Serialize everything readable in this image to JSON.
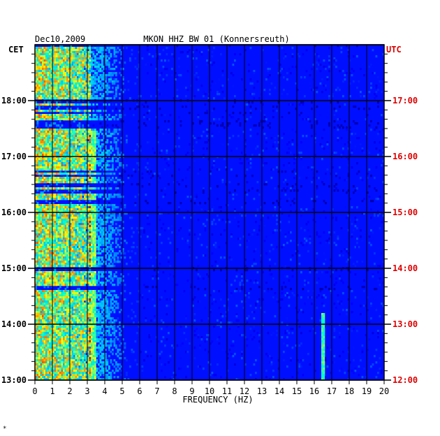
{
  "chart_data": {
    "type": "heatmap",
    "date": "Dec10,2009",
    "title": "MKON HHZ BW 01 (Konnersreuth)",
    "xlabel": "FREQUENCY (HZ)",
    "xlim": [
      0,
      20
    ],
    "x_ticks": [
      "0",
      "1",
      "2",
      "3",
      "4",
      "5",
      "6",
      "7",
      "8",
      "9",
      "10",
      "11",
      "12",
      "13",
      "14",
      "15",
      "16",
      "17",
      "18",
      "19",
      "20"
    ],
    "left_axis": {
      "zone": "CET",
      "range_hours": [
        13,
        19
      ],
      "ticks": [
        "13:00",
        "14:00",
        "15:00",
        "16:00",
        "17:00",
        "18:00"
      ]
    },
    "right_axis": {
      "zone": "UTC",
      "range_hours": [
        12,
        18
      ],
      "ticks": [
        "12:00",
        "13:00",
        "14:00",
        "15:00",
        "16:00",
        "17:00"
      ]
    },
    "grid": true,
    "colors": {
      "background": "#0033bb",
      "grid": "#000000",
      "left_labels": "#000000",
      "right_labels": "#dd0000",
      "colormap": [
        "#00008b",
        "#0000ff",
        "#00bfff",
        "#00ffcc",
        "#ffff00",
        "#ff8000",
        "#cc0000"
      ]
    },
    "intensity_profile": {
      "description_free": true,
      "hot_band_hz": [
        0,
        3.2
      ],
      "line_hz": [
        3.1,
        3.5
      ],
      "faint_line_hz": 16.5
    }
  },
  "footer": {
    "mark": "*"
  }
}
